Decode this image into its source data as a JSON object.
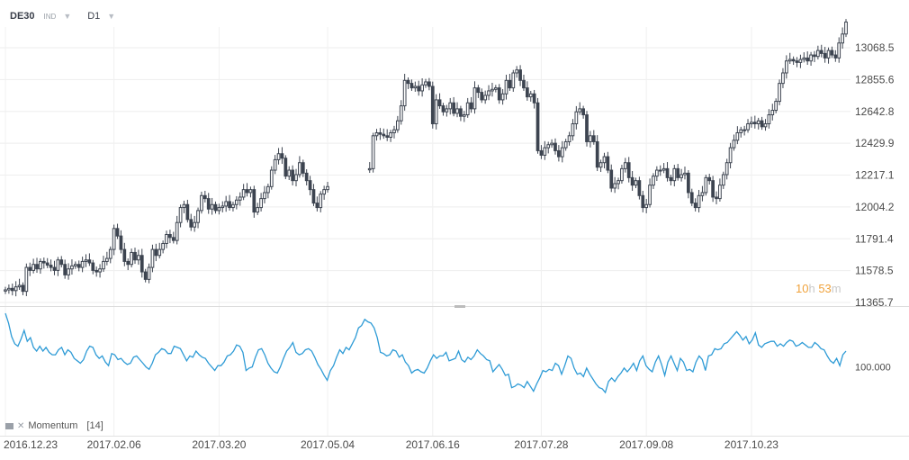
{
  "toolbar": {
    "symbol": "DE30",
    "symbol_type": "IND",
    "timeframe": "D1"
  },
  "countdown": {
    "hours": "10",
    "h": "h",
    "minutes": "53",
    "m": "m"
  },
  "indicator": {
    "name": "Momentum",
    "param": "[14]",
    "close_glyph": "✕",
    "menu_icon": "indicator-menu-icon"
  },
  "colors": {
    "up": "#ffffff",
    "down": "#3d4450",
    "wick": "#3d4450",
    "momentum": "#2e9bd6",
    "countdown": "#f0a23b"
  },
  "chart_data": [
    {
      "type": "candlestick",
      "name": "price",
      "ylim": [
        11365.7,
        13280
      ],
      "y_ticks": [
        "13068.5",
        "12855.6",
        "12642.8",
        "12429.9",
        "12217.1",
        "12004.2",
        "11791.4",
        "11578.5",
        "11365.7"
      ],
      "x_ticks": [
        "2016.12.23",
        "2017.02.06",
        "2017.03.20",
        "2017.05.04",
        "2017.06.16",
        "2017.07.28",
        "2017.09.08",
        "2017.10.23"
      ],
      "close": [
        11450,
        11460,
        11445,
        11470,
        11480,
        11440,
        11600,
        11580,
        11620,
        11590,
        11640,
        11630,
        11615,
        11600,
        11580,
        11650,
        11620,
        11550,
        11590,
        11610,
        11620,
        11600,
        11640,
        11650,
        11630,
        11580,
        11570,
        11590,
        11640,
        11660,
        11720,
        11860,
        11810,
        11720,
        11640,
        11620,
        11700,
        11650,
        11680,
        11570,
        11520,
        11600,
        11720,
        11680,
        11720,
        11760,
        11820,
        11800,
        11780,
        11900,
        12000,
        12020,
        11920,
        11870,
        11900,
        11980,
        12080,
        12060,
        11990,
        12020,
        11980,
        12000,
        12010,
        12040,
        12000,
        12020,
        12050,
        12070,
        12120,
        12100,
        12120,
        11970,
        12000,
        12060,
        12100,
        12140,
        12250,
        12320,
        12360,
        12330,
        12210,
        12250,
        12180,
        12220,
        12300,
        12230,
        12180,
        12120,
        12030,
        12000,
        12090,
        12120,
        12140,
        null,
        null,
        null,
        null,
        null,
        null,
        null,
        null,
        null,
        null,
        null,
        12260,
        12480,
        12500,
        12490,
        12480,
        12470,
        12500,
        12520,
        12580,
        12680,
        12850,
        12830,
        12800,
        12810,
        12780,
        12820,
        12840,
        12810,
        12560,
        12720,
        12680,
        12640,
        12660,
        12700,
        12630,
        12660,
        12610,
        12620,
        12700,
        12660,
        12800,
        12770,
        12720,
        12750,
        12780,
        12790,
        12800,
        12720,
        12760,
        12850,
        12800,
        12900,
        12920,
        12850,
        12800,
        12740,
        12760,
        12700,
        12380,
        12350,
        12400,
        12420,
        12430,
        12380,
        12340,
        12400,
        12440,
        12480,
        12560,
        12640,
        12660,
        12620,
        12440,
        12480,
        12440,
        12270,
        12300,
        12340,
        12250,
        12130,
        12160,
        12180,
        12260,
        12300,
        12200,
        12150,
        12180,
        12080,
        12000,
        12020,
        12150,
        12210,
        12250,
        12250,
        12260,
        12200,
        12180,
        12260,
        12200,
        12220,
        12230,
        12100,
        12030,
        12000,
        12080,
        12100,
        12200,
        12180,
        12070,
        12060,
        12150,
        12220,
        12300,
        12400,
        12450,
        12500,
        12520,
        12520,
        12560,
        12570,
        12560,
        12580,
        12540,
        12560,
        12620,
        12650,
        12710,
        12830,
        12900,
        12980,
        12990,
        12980,
        12970,
        12990,
        13000,
        12980,
        13020,
        13010,
        13050,
        13030,
        13000,
        13050,
        13020,
        13000,
        13100,
        13160,
        13240
      ]
    },
    {
      "type": "line",
      "name": "Momentum",
      "reference_level": "100.000",
      "reference_value": 100,
      "ylim": [
        94.5,
        104.7
      ],
      "values": [
        104.4,
        103.6,
        102.5,
        101.9,
        101.7,
        102.3,
        103.0,
        102.1,
        102.4,
        101.6,
        101.3,
        101.7,
        101.3,
        101.6,
        101.2,
        101.0,
        101.0,
        101.4,
        101.6,
        101.0,
        101.4,
        101.2,
        100.7,
        100.5,
        100.3,
        100.6,
        101.3,
        101.7,
        101.6,
        101.0,
        100.7,
        100.9,
        100.4,
        100.1,
        101.1,
        101.0,
        100.6,
        100.7,
        100.4,
        100.2,
        100.3,
        100.8,
        100.9,
        100.6,
        100.3,
        100.0,
        99.8,
        100.3,
        101.0,
        101.2,
        101.5,
        101.4,
        101.1,
        101.1,
        101.7,
        101.6,
        101.5,
        101.0,
        100.5,
        100.9,
        100.8,
        101.3,
        101.0,
        100.8,
        100.7,
        100.3,
        100.0,
        99.7,
        100.1,
        100.1,
        100.4,
        100.9,
        101.0,
        101.3,
        101.8,
        101.7,
        101.2,
        99.7,
        99.9,
        100.0,
        100.8,
        101.4,
        101.5,
        101.0,
        100.3,
        99.9,
        99.6,
        99.5,
        100.0,
        100.7,
        101.3,
        101.6,
        102.0,
        101.2,
        101.0,
        101.1,
        101.4,
        101.5,
        101.3,
        100.8,
        100.2,
        99.8,
        99.3,
        98.9,
        99.7,
        100.1,
        100.8,
        101.4,
        101.1,
        101.6,
        101.4,
        101.9,
        102.4,
        103.2,
        103.4,
        103.9,
        103.7,
        103.6,
        103.2,
        102.4,
        101.2,
        101.1,
        100.9,
        101.0,
        101.4,
        101.3,
        100.8,
        101.0,
        100.4,
        100.1,
        99.5,
        99.7,
        99.8,
        99.6,
        99.5,
        99.9,
        100.5,
        101.0,
        100.7,
        100.9,
        100.9,
        101.2,
        100.5,
        100.6,
        100.7,
        101.3,
        100.6,
        100.4,
        100.8,
        100.6,
        100.9,
        101.4,
        101.1,
        100.9,
        100.6,
        100.5,
        99.6,
        99.9,
        100.2,
        99.8,
        99.3,
        99.4,
        98.3,
        98.4,
        98.6,
        98.5,
        98.3,
        98.8,
        98.4,
        98.0,
        98.6,
        99.1,
        99.7,
        99.6,
        99.8,
        99.7,
        100.3,
        100.1,
        99.4,
        100.1,
        100.9,
        100.7,
        99.9,
        99.4,
        99.5,
        99.2,
        99.9,
        99.4,
        99.0,
        98.6,
        98.3,
        98.2,
        97.9,
        98.8,
        99.1,
        98.8,
        99.2,
        99.5,
        99.9,
        99.6,
        99.9,
        100.3,
        99.7,
        100.5,
        100.9,
        100.1,
        99.8,
        99.6,
        100.4,
        100.9,
        100.2,
        99.3,
        100.4,
        100.9,
        100.3,
        99.7,
        100.7,
        100.4,
        99.7,
        99.8,
        99.6,
        100.4,
        100.9,
        100.6,
        99.7,
        100.9,
        101.0,
        101.5,
        101.4,
        101.5,
        101.9,
        102.0,
        102.3,
        102.6,
        102.9,
        102.6,
        102.2,
        102.5,
        101.9,
        102.2,
        102.8,
        101.8,
        101.6,
        101.9,
        102.0,
        102.1,
        102.1,
        101.7,
        101.9,
        101.7,
        102.0,
        102.2,
        102.1,
        101.7,
        101.8,
        102.0,
        101.8,
        101.6,
        101.6,
        102.0,
        101.8,
        101.5,
        101.4,
        100.9,
        100.5,
        100.3,
        100.7,
        100.1,
        101.0,
        101.3
      ]
    }
  ]
}
